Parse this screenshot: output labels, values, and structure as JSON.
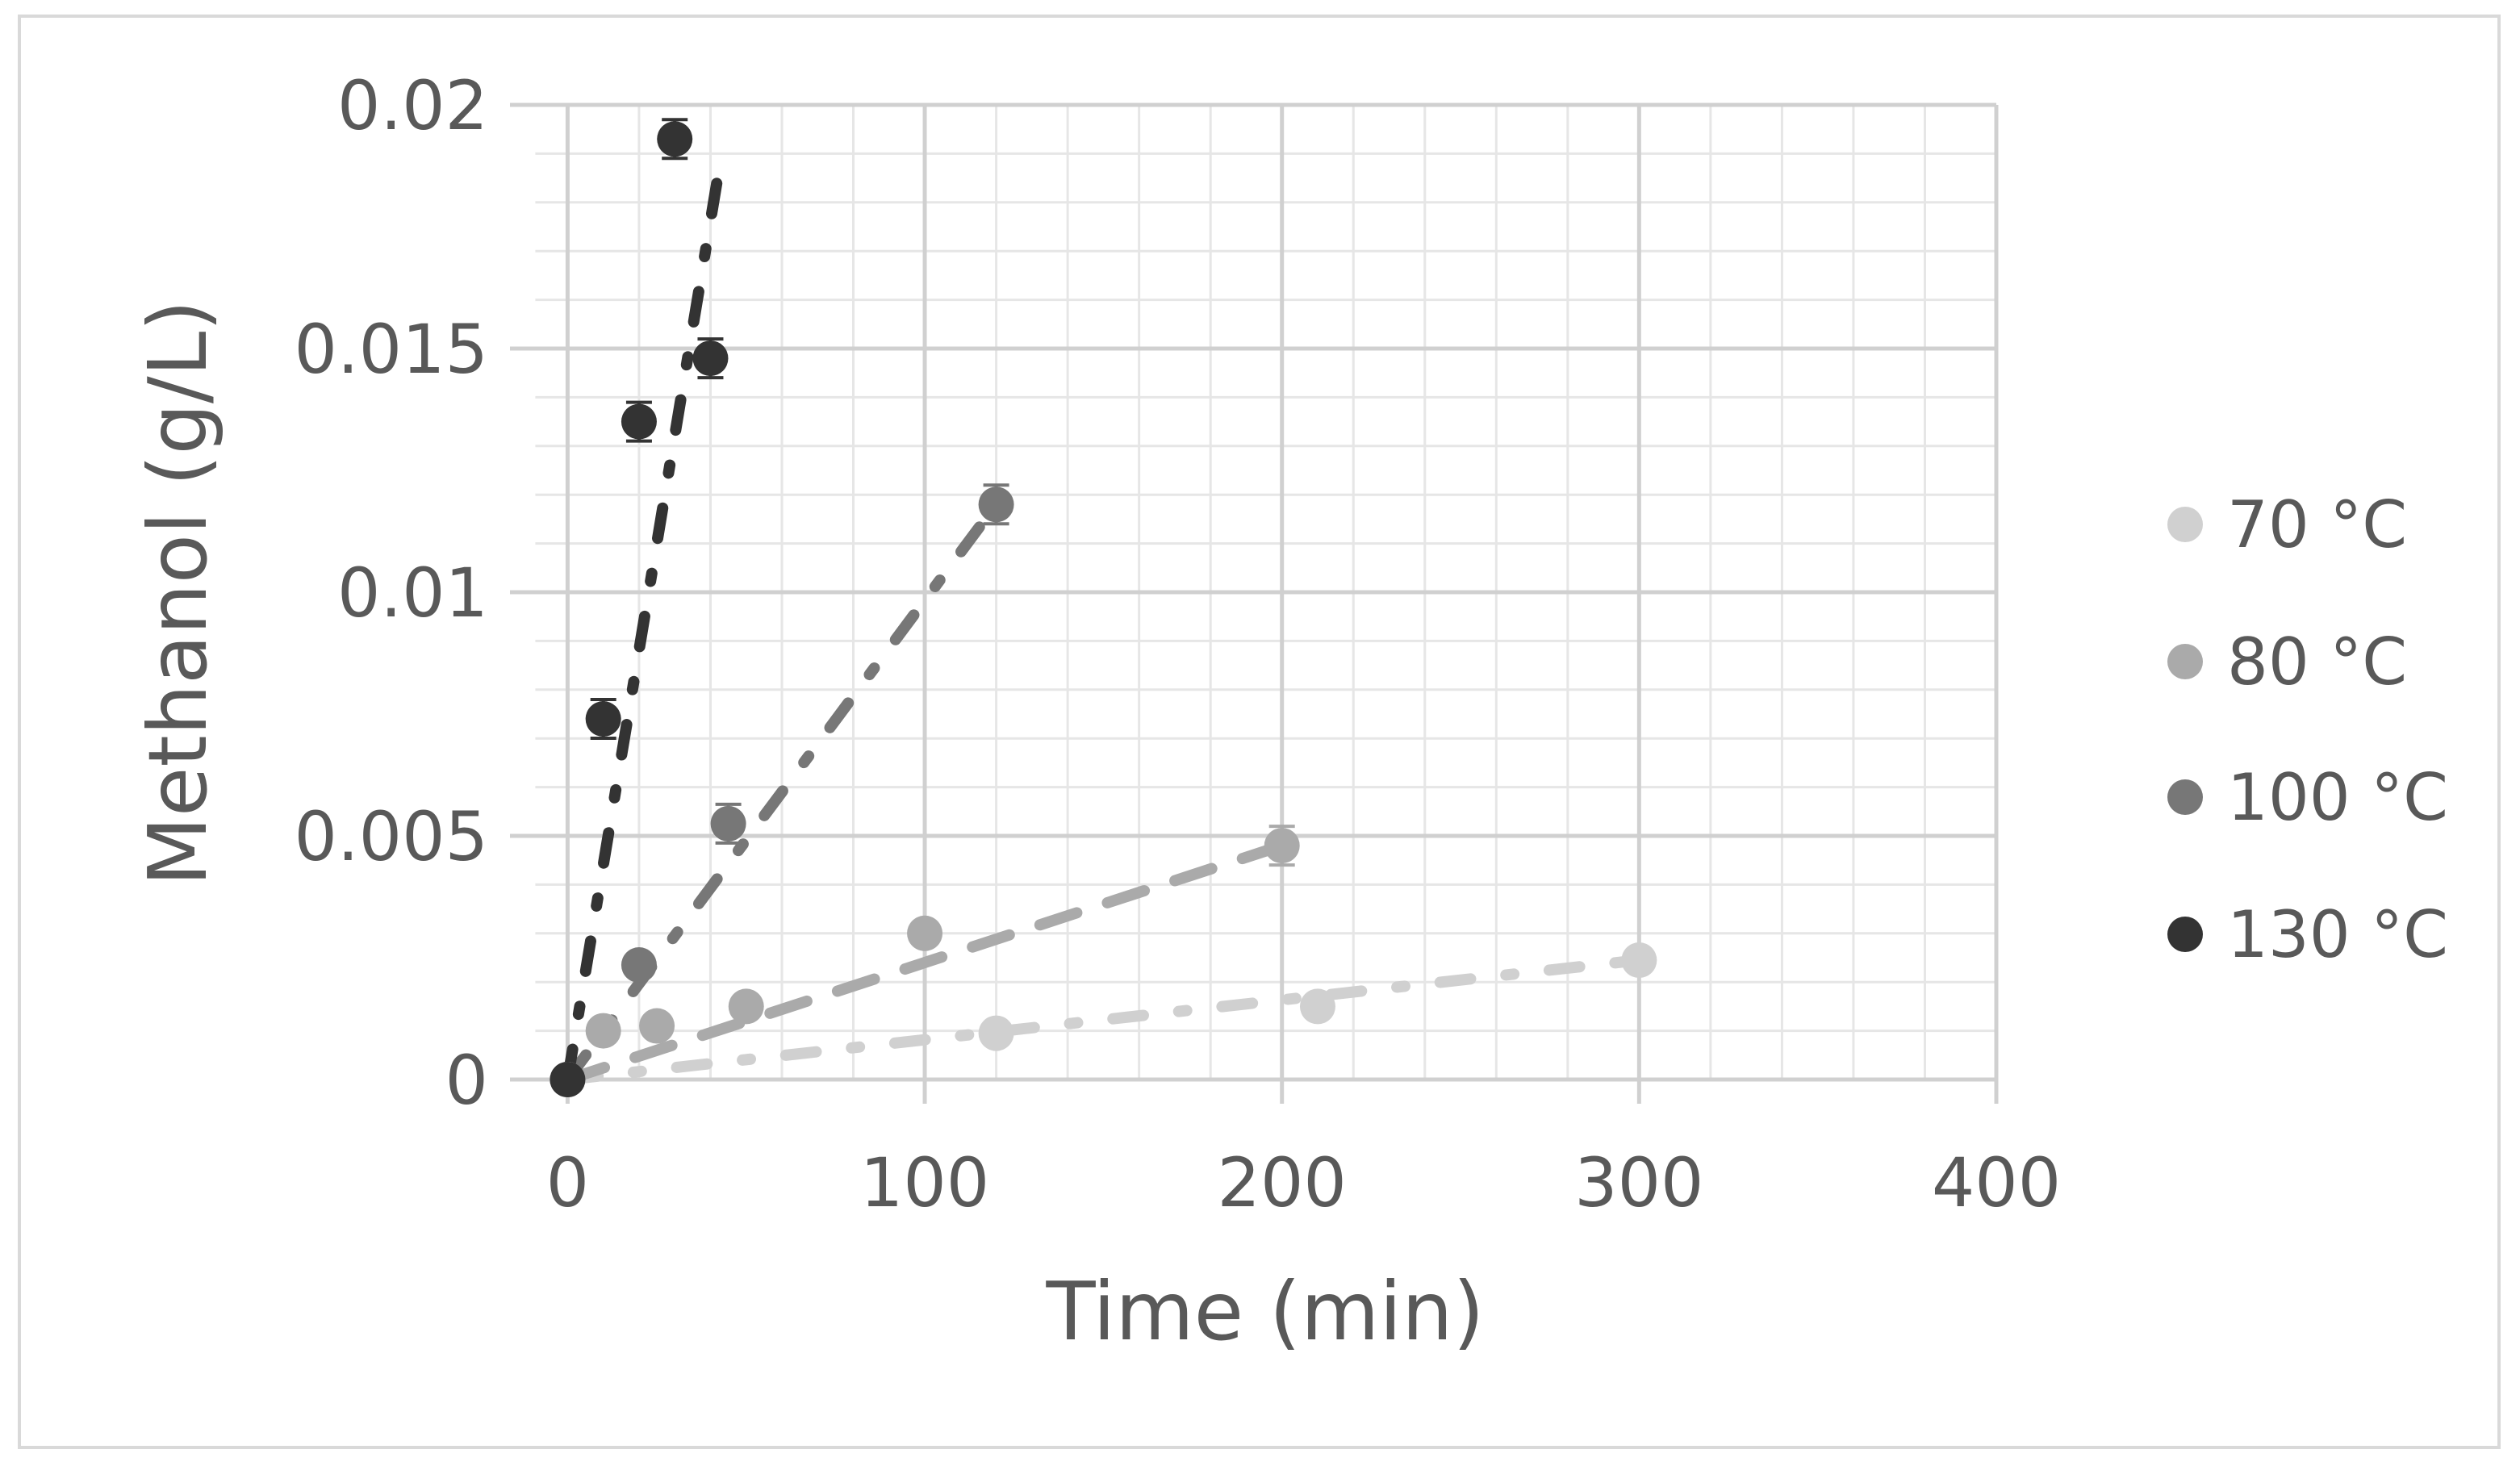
{
  "chart_data": {
    "type": "scatter",
    "title": "",
    "xlabel": "Time (min)",
    "ylabel": "Methanol (g/L)",
    "xlim": [
      0,
      400
    ],
    "ylim": [
      0,
      0.02
    ],
    "x_ticks": [
      "0",
      "100",
      "200",
      "300",
      "400"
    ],
    "y_ticks": [
      "0",
      "0.005",
      "0.01",
      "0.015",
      "0.02"
    ],
    "grid": true,
    "minor_grid": true,
    "legend_position": "right",
    "series": [
      {
        "name": "70 °C",
        "color": "#d0d0d0",
        "dash": "dash-dot",
        "points": [
          {
            "x": 0,
            "y": 0
          },
          {
            "x": 120,
            "y": 0.00095
          },
          {
            "x": 210,
            "y": 0.0015
          },
          {
            "x": 300,
            "y": 0.00245
          }
        ],
        "trend": [
          [
            0,
            0
          ],
          [
            300,
            0.00245
          ]
        ]
      },
      {
        "name": "80 °C",
        "color": "#aaaaaa",
        "dash": "dash",
        "points": [
          {
            "x": 0,
            "y": 0
          },
          {
            "x": 10,
            "y": 0.001
          },
          {
            "x": 25,
            "y": 0.0011
          },
          {
            "x": 50,
            "y": 0.0015
          },
          {
            "x": 100,
            "y": 0.003
          },
          {
            "x": 200,
            "y": 0.0048
          }
        ],
        "trend": [
          [
            0,
            0
          ],
          [
            200,
            0.0048
          ]
        ]
      },
      {
        "name": "100 °C",
        "color": "#777777",
        "dash": "dash-dot",
        "points": [
          {
            "x": 0,
            "y": 0
          },
          {
            "x": 20,
            "y": 0.00235
          },
          {
            "x": 45,
            "y": 0.00525
          },
          {
            "x": 120,
            "y": 0.0118
          }
        ],
        "trend": [
          [
            0,
            0
          ],
          [
            120,
            0.0118
          ]
        ]
      },
      {
        "name": "130 °C",
        "color": "#333333",
        "dash": "dash-dot",
        "points": [
          {
            "x": 0,
            "y": 0
          },
          {
            "x": 10,
            "y": 0.0074
          },
          {
            "x": 20,
            "y": 0.0135
          },
          {
            "x": 30,
            "y": 0.0193
          },
          {
            "x": 40,
            "y": 0.0148
          }
        ],
        "trend": [
          [
            0,
            0
          ],
          [
            42,
            0.0185
          ]
        ]
      }
    ]
  }
}
